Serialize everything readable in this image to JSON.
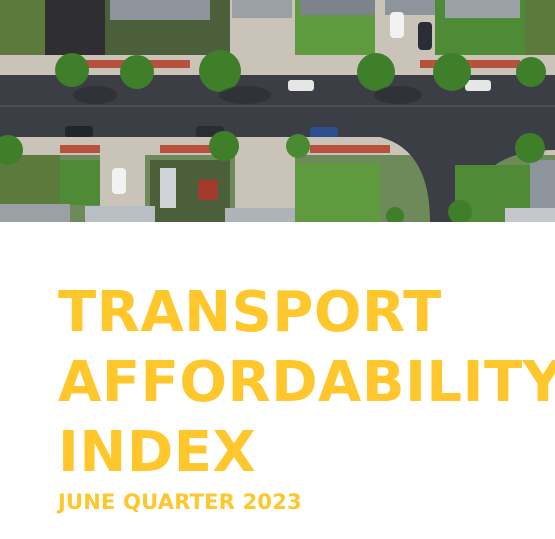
{
  "hero": {
    "alt_description": ""
  },
  "cover": {
    "title_lines": [
      "TRANSPORT",
      "AFFORDABILITY",
      "INDEX"
    ],
    "subtitle": "JUNE QUARTER 2023"
  },
  "colors": {
    "accent_yellow": "#FFC72C",
    "road": "#3b3e44",
    "lawn": "#4f8a36",
    "pavement": "#c9c3b8",
    "roof_grey": "#8e949b",
    "tree": "#3f7f2a",
    "brick_path": "#b5513d"
  }
}
